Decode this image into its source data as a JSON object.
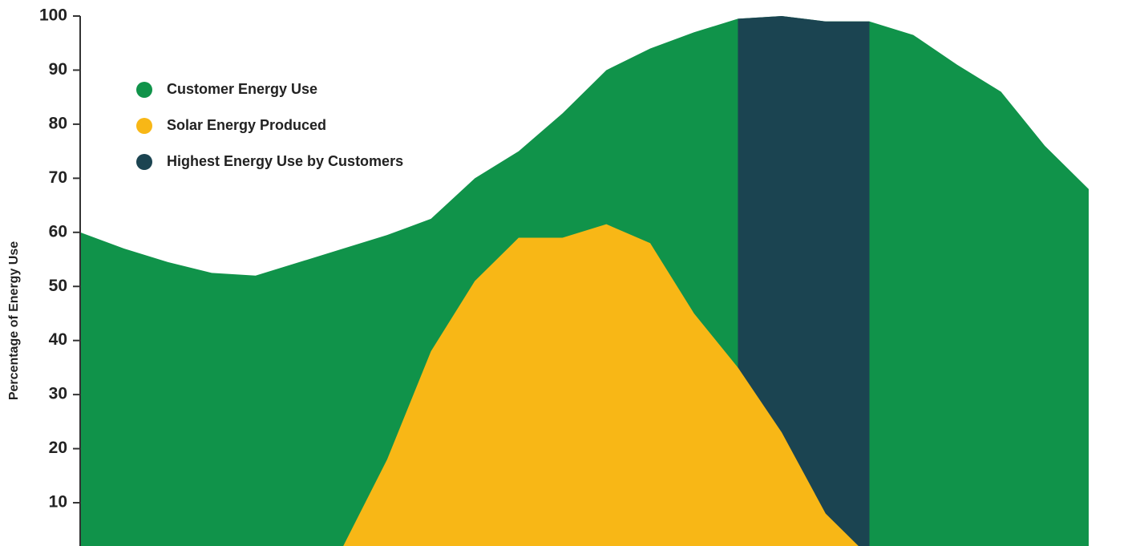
{
  "chart_data": {
    "type": "area",
    "y_label": "Percentage of Energy Use",
    "categories": [
      null,
      null,
      null,
      null,
      null,
      null,
      null,
      null,
      null,
      null,
      null,
      null,
      null,
      null,
      null,
      null,
      null,
      null,
      null,
      null,
      null,
      null,
      null,
      null
    ],
    "series": [
      {
        "name": "Customer Energy Use",
        "color": "#10934a",
        "values": [
          60,
          57,
          54.5,
          52.5,
          52,
          54.5,
          57,
          59.5,
          62.5,
          70,
          75,
          82,
          90,
          94,
          97,
          99.5,
          100,
          99,
          99,
          96.5,
          91,
          86,
          76,
          68
        ]
      },
      {
        "name": "Highest Energy Use by Customers",
        "color": "#1b4451",
        "values": [
          null,
          null,
          null,
          null,
          null,
          null,
          null,
          null,
          null,
          null,
          null,
          null,
          null,
          null,
          null,
          99.5,
          100,
          99,
          99,
          null,
          null,
          null,
          null,
          null
        ]
      },
      {
        "name": "Solar Energy Produced",
        "color": "#f8b716",
        "values": [
          null,
          null,
          null,
          null,
          null,
          0,
          2,
          18,
          38,
          51,
          59,
          59,
          61.5,
          58,
          45,
          35,
          23,
          8,
          0,
          null,
          null,
          null,
          null,
          null
        ]
      }
    ],
    "legend_order": [
      0,
      2,
      1
    ],
    "legend": "upper left",
    "ylim": [
      2,
      100
    ],
    "yticks": [
      10,
      20,
      30,
      40,
      50,
      60,
      70,
      80,
      90,
      100
    ]
  }
}
